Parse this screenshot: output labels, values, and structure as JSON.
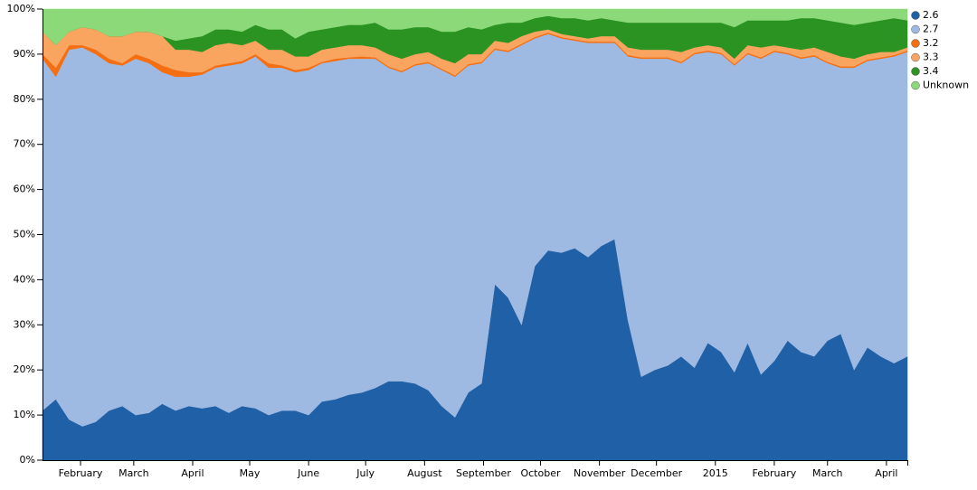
{
  "chart_data": {
    "type": "stacked_area",
    "x": [
      0,
      7,
      14,
      21,
      28,
      35,
      42,
      49,
      56,
      63,
      70,
      77,
      84,
      91,
      98,
      105,
      112,
      119,
      126,
      133,
      140,
      147,
      154,
      161,
      168,
      175,
      182,
      189,
      196,
      203,
      210,
      217,
      224,
      231,
      238,
      245,
      252,
      259,
      266,
      273,
      280,
      287,
      294,
      301,
      308,
      315,
      322,
      329,
      336,
      343,
      350,
      357,
      364,
      371,
      378,
      385,
      392,
      399,
      406,
      413,
      420,
      427,
      434,
      441,
      448,
      455
    ],
    "xlim": [
      0,
      455
    ],
    "xticks": [
      {
        "value": 20,
        "label": "February"
      },
      {
        "value": 48,
        "label": "March"
      },
      {
        "value": 79,
        "label": "April"
      },
      {
        "value": 109,
        "label": "May"
      },
      {
        "value": 140,
        "label": "June"
      },
      {
        "value": 170,
        "label": "July"
      },
      {
        "value": 201,
        "label": "August"
      },
      {
        "value": 232,
        "label": "September"
      },
      {
        "value": 262,
        "label": "October"
      },
      {
        "value": 293,
        "label": "November"
      },
      {
        "value": 323,
        "label": "December"
      },
      {
        "value": 354,
        "label": "2015"
      },
      {
        "value": 385,
        "label": "February"
      },
      {
        "value": 413,
        "label": "March"
      },
      {
        "value": 444,
        "label": "April"
      }
    ],
    "ylim": [
      0,
      100
    ],
    "yticks": [
      {
        "value": 0,
        "label": "0%"
      },
      {
        "value": 10,
        "label": "10%"
      },
      {
        "value": 20,
        "label": "20%"
      },
      {
        "value": 30,
        "label": "30%"
      },
      {
        "value": 40,
        "label": "40%"
      },
      {
        "value": 50,
        "label": "50%"
      },
      {
        "value": 60,
        "label": "60%"
      },
      {
        "value": 70,
        "label": "70%"
      },
      {
        "value": 80,
        "label": "80%"
      },
      {
        "value": 90,
        "label": "90%"
      },
      {
        "value": 100,
        "label": "100%"
      }
    ],
    "legend": "top-right",
    "series": [
      {
        "name": "2.6",
        "color": "#1f60a6",
        "values": [
          11,
          13.5,
          9,
          7.5,
          8.5,
          11,
          12,
          10,
          10.5,
          12.5,
          11,
          12,
          11.5,
          12,
          10.5,
          12,
          11.5,
          10,
          11,
          11,
          10,
          13,
          13.5,
          14.5,
          15,
          16,
          17.5,
          17.5,
          17,
          15.5,
          12,
          9.5,
          15,
          17,
          39,
          36,
          30,
          43,
          46.5,
          46,
          47,
          45,
          47.5,
          49,
          31,
          18.5,
          20,
          21,
          23,
          20.5,
          26,
          24,
          19.5,
          26,
          19,
          22,
          26.5,
          24,
          23,
          26.5,
          28,
          20,
          25,
          23,
          21.5,
          23
        ]
      },
      {
        "name": "2.7",
        "color": "#9fbae2",
        "values": [
          78,
          71.5,
          82,
          84,
          81.5,
          77,
          75.5,
          79,
          77.5,
          73.5,
          74,
          73,
          74,
          75,
          77,
          76,
          78,
          77,
          76,
          75,
          76.5,
          75,
          75,
          74.5,
          74,
          73,
          69.5,
          68.5,
          70.5,
          72.5,
          74.5,
          75.5,
          72.5,
          71,
          52,
          54.5,
          62,
          50.5,
          48,
          47.5,
          46,
          47.5,
          45,
          43.5,
          58.5,
          70.5,
          69,
          68,
          65,
          69.5,
          64.5,
          66,
          68,
          64,
          70,
          68.5,
          63.5,
          65,
          66.5,
          61.5,
          59,
          67,
          63.5,
          66,
          68,
          67.5
        ]
      },
      {
        "name": "3.2",
        "color": "#f56f12",
        "values": [
          1,
          2,
          1,
          0.5,
          1,
          1,
          0.5,
          1,
          1,
          1.5,
          1.5,
          1,
          0.5,
          0.5,
          0.5,
          0.5,
          0.5,
          1,
          0.5,
          0.5,
          0.5,
          0.3,
          0.5,
          0.3,
          0.5,
          0.3,
          0.3,
          0.3,
          0.3,
          0.3,
          0.3,
          0.3,
          0.3,
          0.3,
          0.3,
          0.3,
          0.3,
          0.3,
          0.3,
          0.3,
          0.3,
          0.3,
          0.3,
          0.3,
          0.3,
          0.3,
          0.3,
          0.3,
          0.3,
          0.3,
          0.3,
          0.3,
          0.3,
          0.3,
          0.3,
          0.3,
          0.3,
          0.3,
          0.3,
          0.3,
          0.3,
          0.3,
          0.3,
          0.3,
          0.3,
          0.3
        ]
      },
      {
        "name": "3.3",
        "color": "#f9a45f",
        "values": [
          5,
          5,
          3,
          4,
          4.5,
          5,
          6,
          5,
          6,
          6.5,
          4.5,
          5,
          4.5,
          4.5,
          4.5,
          3.5,
          3,
          3,
          3.5,
          3,
          2.5,
          2.7,
          2.5,
          2.7,
          2.5,
          2.2,
          2.7,
          2.7,
          2.2,
          2.2,
          2.2,
          2.7,
          2.2,
          1.7,
          1.7,
          1.7,
          1.7,
          1.2,
          0.7,
          0.7,
          0.7,
          0.7,
          1.2,
          1.2,
          1.7,
          1.7,
          1.7,
          1.7,
          2.2,
          1.2,
          1.2,
          1.2,
          1.2,
          1.7,
          2.2,
          1.2,
          1.2,
          1.7,
          1.7,
          2.2,
          2.2,
          1.7,
          1.2,
          1.2,
          0.7,
          0.7
        ]
      },
      {
        "name": "3.4",
        "color": "#2a9322",
        "values": [
          0,
          0,
          0,
          0,
          0,
          0,
          0,
          0,
          0,
          0,
          2,
          2.5,
          3.5,
          3.5,
          3,
          3,
          3.5,
          4.5,
          4.5,
          4,
          5.5,
          4.5,
          4.5,
          4.5,
          4.5,
          5.5,
          5.5,
          6.5,
          6,
          5.5,
          6,
          7,
          6,
          5.5,
          3.5,
          4.5,
          3,
          3,
          3,
          3.5,
          4,
          4,
          4,
          3.5,
          5.5,
          6,
          6,
          6,
          6.5,
          5.5,
          5,
          5.5,
          7,
          5.5,
          6,
          5.5,
          6,
          7,
          6.5,
          7,
          7.5,
          7.5,
          7,
          7,
          7.5,
          6
        ]
      },
      {
        "name": "Unknown",
        "color": "#8cd97a",
        "values": [
          5,
          8,
          5,
          4,
          4.5,
          6,
          6,
          5,
          5,
          6,
          7,
          6.5,
          6,
          4.5,
          4.5,
          5,
          3.5,
          4.5,
          4.5,
          6.5,
          5,
          4.5,
          4,
          3.5,
          3.5,
          3,
          4.5,
          4.5,
          4,
          4,
          5,
          5,
          4,
          4.5,
          3.5,
          3,
          3,
          2,
          1.5,
          2,
          2,
          2.5,
          2,
          2.5,
          3,
          3,
          3,
          3,
          3,
          3,
          3,
          3,
          4,
          2.5,
          2.5,
          2.5,
          2.5,
          2,
          2,
          2.5,
          3,
          3.5,
          3,
          2.5,
          2,
          2.5
        ]
      }
    ]
  }
}
